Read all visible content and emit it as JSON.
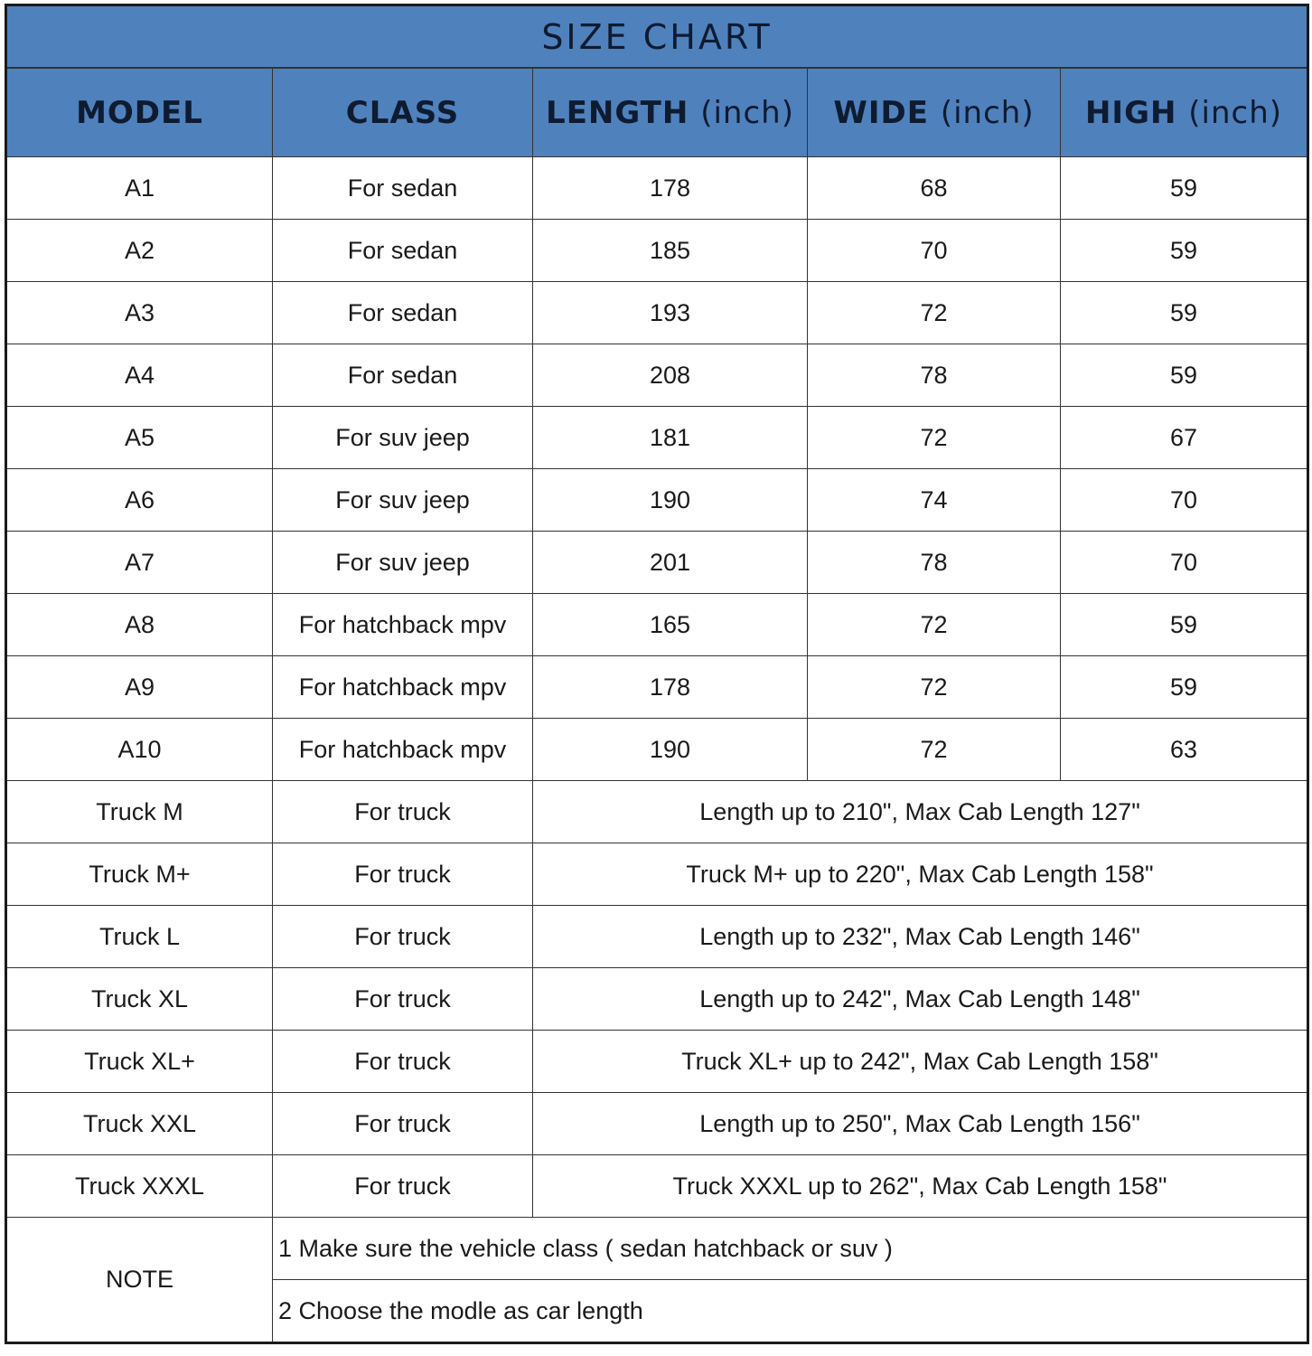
{
  "title": "SIZE CHART",
  "colors": {
    "header_bg": "#4f81bd",
    "header_text": "#0e1b30"
  },
  "columns": [
    {
      "label": "MODEL",
      "unit": ""
    },
    {
      "label": "CLASS",
      "unit": ""
    },
    {
      "label": "LENGTH",
      "unit": "(inch)"
    },
    {
      "label": "WIDE",
      "unit": "(inch)"
    },
    {
      "label": "HIGH",
      "unit": "(inch)"
    }
  ],
  "rows": [
    {
      "model": "A1",
      "class": "For sedan",
      "length": "178",
      "wide": "68",
      "high": "59"
    },
    {
      "model": "A2",
      "class": "For sedan",
      "length": "185",
      "wide": "70",
      "high": "59"
    },
    {
      "model": "A3",
      "class": "For sedan",
      "length": "193",
      "wide": "72",
      "high": "59"
    },
    {
      "model": "A4",
      "class": "For sedan",
      "length": "208",
      "wide": "78",
      "high": "59"
    },
    {
      "model": "A5",
      "class": "For suv jeep",
      "length": "181",
      "wide": "72",
      "high": "67"
    },
    {
      "model": "A6",
      "class": "For suv jeep",
      "length": "190",
      "wide": "74",
      "high": "70"
    },
    {
      "model": "A7",
      "class": "For suv jeep",
      "length": "201",
      "wide": "78",
      "high": "70"
    },
    {
      "model": "A8",
      "class": "For hatchback mpv",
      "length": "165",
      "wide": "72",
      "high": "59"
    },
    {
      "model": "A9",
      "class": "For hatchback mpv",
      "length": "178",
      "wide": "72",
      "high": "59"
    },
    {
      "model": "A10",
      "class": "For hatchback mpv",
      "length": "190",
      "wide": "72",
      "high": "63"
    }
  ],
  "truck_rows": [
    {
      "model": "Truck M",
      "class": "For truck",
      "spec": "Length up to 210\", Max Cab Length 127\""
    },
    {
      "model": "Truck M+",
      "class": "For truck",
      "spec": "Truck M+ up to 220\", Max Cab Length 158\""
    },
    {
      "model": "Truck L",
      "class": "For truck",
      "spec": "Length up to 232\", Max Cab Length 146\""
    },
    {
      "model": "Truck XL",
      "class": "For truck",
      "spec": "Length up to 242\", Max Cab Length 148\""
    },
    {
      "model": "Truck XL+",
      "class": "For truck",
      "spec": "Truck XL+ up to 242\", Max Cab Length 158\""
    },
    {
      "model": "Truck XXL",
      "class": "For truck",
      "spec": "Length up to 250\", Max Cab Length 156\""
    },
    {
      "model": "Truck XXXL",
      "class": "For truck",
      "spec": "Truck XXXL up to 262\", Max Cab Length 158\""
    }
  ],
  "note": {
    "label": "NOTE",
    "lines": [
      "1 Make sure the vehicle class ( sedan hatchback or suv )",
      "2 Choose the modle as car length"
    ]
  }
}
